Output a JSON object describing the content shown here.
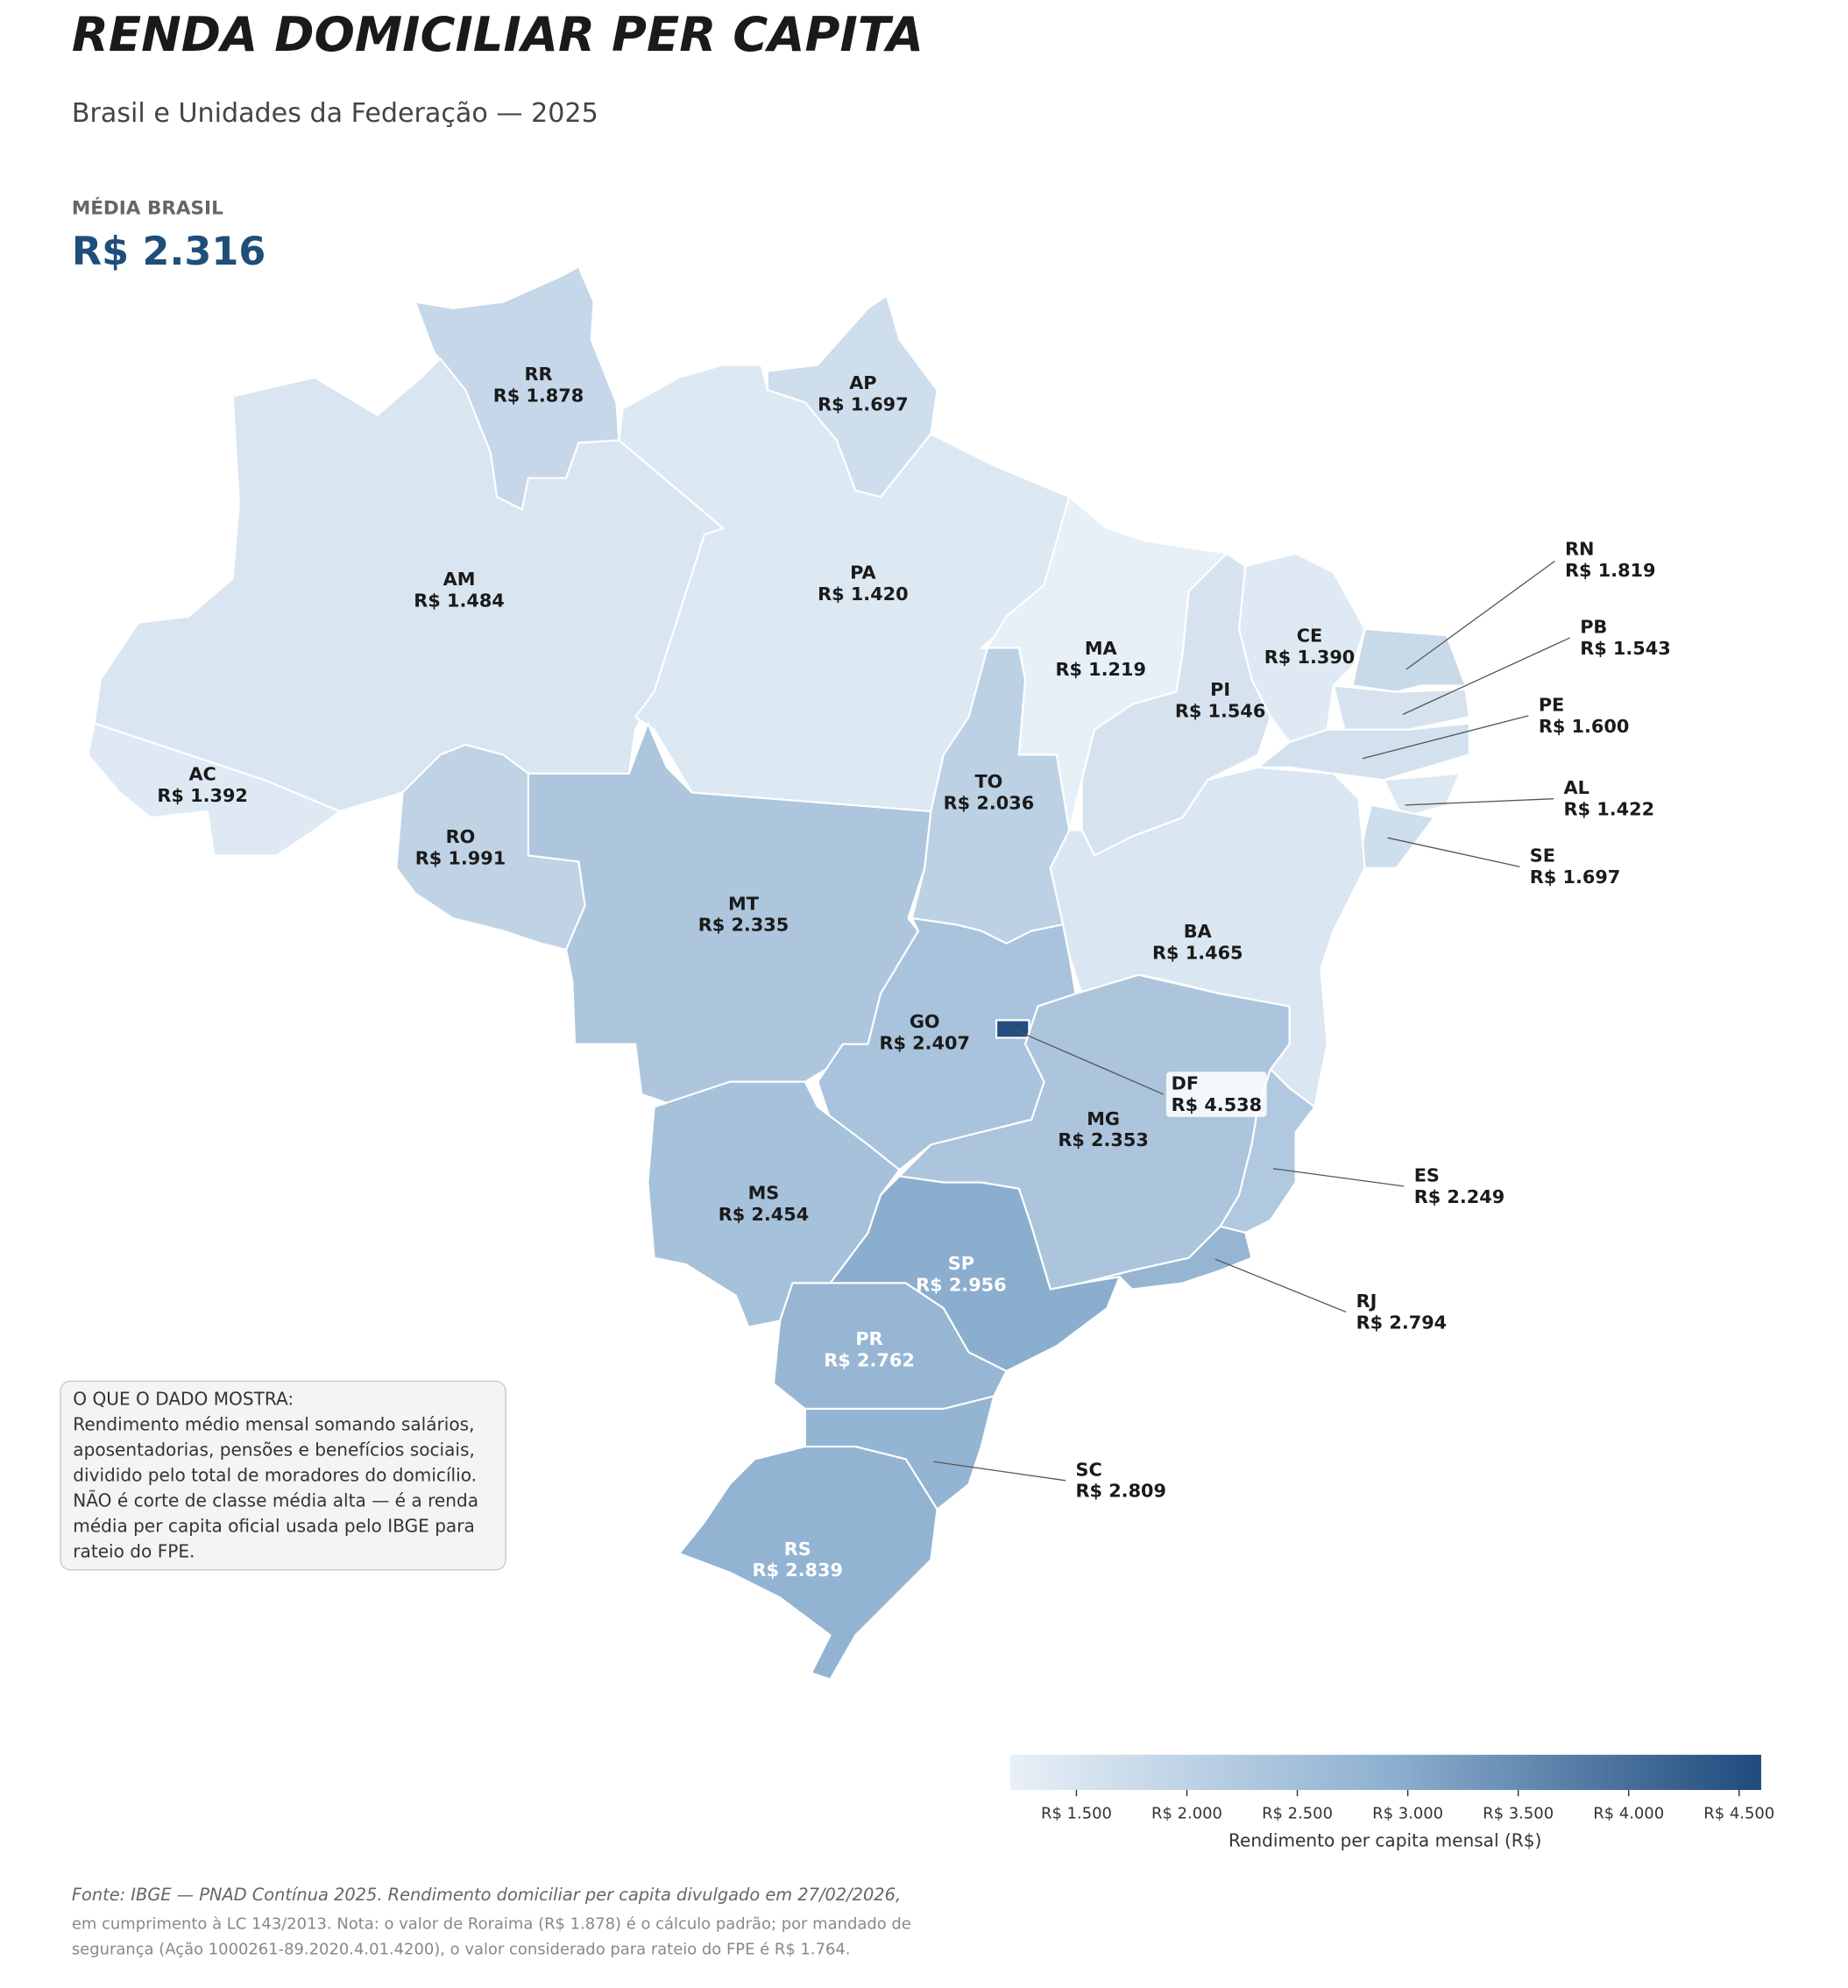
{
  "chart_data": {
    "type": "choropleth",
    "title": "RENDA DOMICILIAR PER CAPITA",
    "subtitle": "Brasil e Unidades da Federação — 2025",
    "kpi_label": "MÉDIA BRASIL",
    "kpi_text": "R$ 2.316",
    "categories": [
      "RR",
      "AP",
      "AM",
      "PA",
      "AC",
      "RO",
      "MT",
      "TO",
      "MA",
      "PI",
      "CE",
      "RN",
      "PB",
      "PE",
      "AL",
      "SE",
      "BA",
      "GO",
      "DF",
      "MG",
      "ES",
      "RJ",
      "SP",
      "MS",
      "PR",
      "SC",
      "RS"
    ],
    "values": [
      1878,
      1697,
      1484,
      1420,
      1392,
      1991,
      2335,
      2036,
      1219,
      1546,
      1390,
      1819,
      1543,
      1600,
      1422,
      1697,
      1465,
      2407,
      4538,
      2353,
      2249,
      2794,
      2956,
      2454,
      2762,
      2809,
      2839
    ],
    "value_labels": [
      "R$ 1.878",
      "R$ 1.697",
      "R$ 1.484",
      "R$ 1.420",
      "R$ 1.392",
      "R$ 1.991",
      "R$ 2.335",
      "R$ 2.036",
      "R$ 1.219",
      "R$ 1.546",
      "R$ 1.390",
      "R$ 1.819",
      "R$ 1.543",
      "R$ 1.600",
      "R$ 1.422",
      "R$ 1.697",
      "R$ 1.465",
      "R$ 2.407",
      "R$ 4.538",
      "R$ 2.353",
      "R$ 2.249",
      "R$ 2.794",
      "R$ 2.956",
      "R$ 2.454",
      "R$ 2.762",
      "R$ 2.809",
      "R$ 2.839"
    ],
    "colormap": [
      "#e8f0f7",
      "#8fb1d1",
      "#1f4a7c"
    ],
    "clim": [
      1200,
      4600
    ],
    "colorbar_label": "Rendimento per capita mensal (R$)",
    "colorbar_ticks": [
      {
        "value": 1500,
        "label": "R$ 1.500"
      },
      {
        "value": 2000,
        "label": "R$ 2.000"
      },
      {
        "value": 2500,
        "label": "R$ 2.500"
      },
      {
        "value": 3000,
        "label": "R$ 3.000"
      },
      {
        "value": 3500,
        "label": "R$ 3.500"
      },
      {
        "value": 4000,
        "label": "R$ 4.000"
      },
      {
        "value": 4500,
        "label": "R$ 4.500"
      }
    ],
    "note_lines": [
      "O QUE O DADO MOSTRA:",
      "Rendimento médio mensal somando salários,",
      "aposentadorias, pensões e benefícios sociais,",
      "dividido pelo total de moradores do domicílio.",
      "NÃO é corte de classe média alta — é a renda",
      "média per capita oficial usada pelo IBGE para",
      "rateio do FPE."
    ],
    "source_lines": [
      "Fonte: IBGE — PNAD Contínua 2025. Rendimento domiciliar per capita divulgado em 27/02/2026,",
      "em cumprimento à LC 143/2013. Nota: o valor de Roraima (R$ 1.878) é o cálculo padrão; por mandado de",
      "segurança (Ação 1000261-89.2020.4.01.4200), o valor considerado para rateio do FPE é R$ 1.764."
    ]
  }
}
